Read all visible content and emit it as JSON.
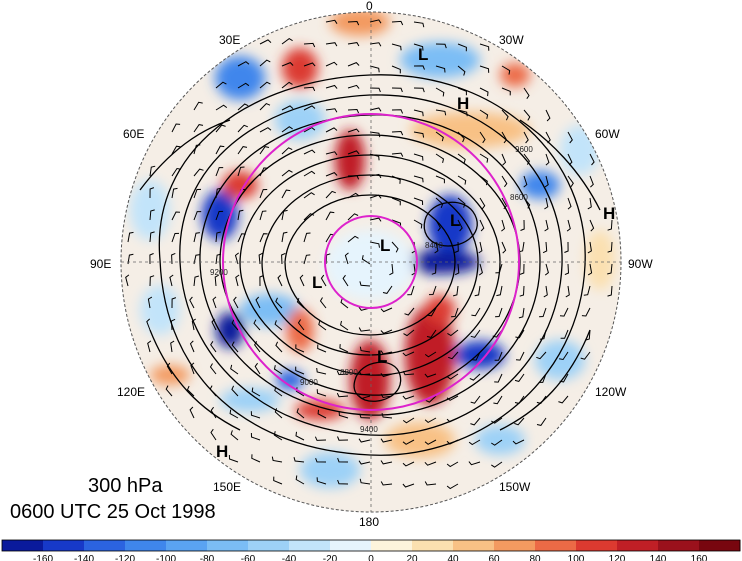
{
  "title": {
    "level": "300 hPa",
    "time": "0600 UTC 25 Oct 1998"
  },
  "longitude_labels": [
    "0",
    "30W",
    "60W",
    "90W",
    "120W",
    "150W",
    "180",
    "150E",
    "120E",
    "90E",
    "60E",
    "30E"
  ],
  "pressure_centers": [
    "L",
    "H",
    "L",
    "L",
    "L",
    "L",
    "H",
    "H"
  ],
  "contour_labels": [
    "9600",
    "9400",
    "9200",
    "9000",
    "8800",
    "8600",
    "8400"
  ],
  "colorbar": {
    "tick_labels": [
      "-160",
      "-140",
      "-120",
      "-100",
      "-80",
      "-60",
      "-40",
      "-20",
      "0",
      "20",
      "40",
      "60",
      "80",
      "100",
      "120",
      "140",
      "160"
    ],
    "colors": [
      "#0a1a9c",
      "#1739c8",
      "#2b63e0",
      "#3f86ec",
      "#5aa3f2",
      "#7bbdf5",
      "#9dd1f7",
      "#c2e4fa",
      "#e6f4fd",
      "#fdf4dc",
      "#fbe0b0",
      "#f8c185",
      "#f39a60",
      "#ec6a46",
      "#dc3a30",
      "#c01f26",
      "#9a111c",
      "#78060f"
    ]
  },
  "colors": {
    "jet_circle": "#dd22cc",
    "contour": "#000000",
    "background": "#ffffff"
  }
}
